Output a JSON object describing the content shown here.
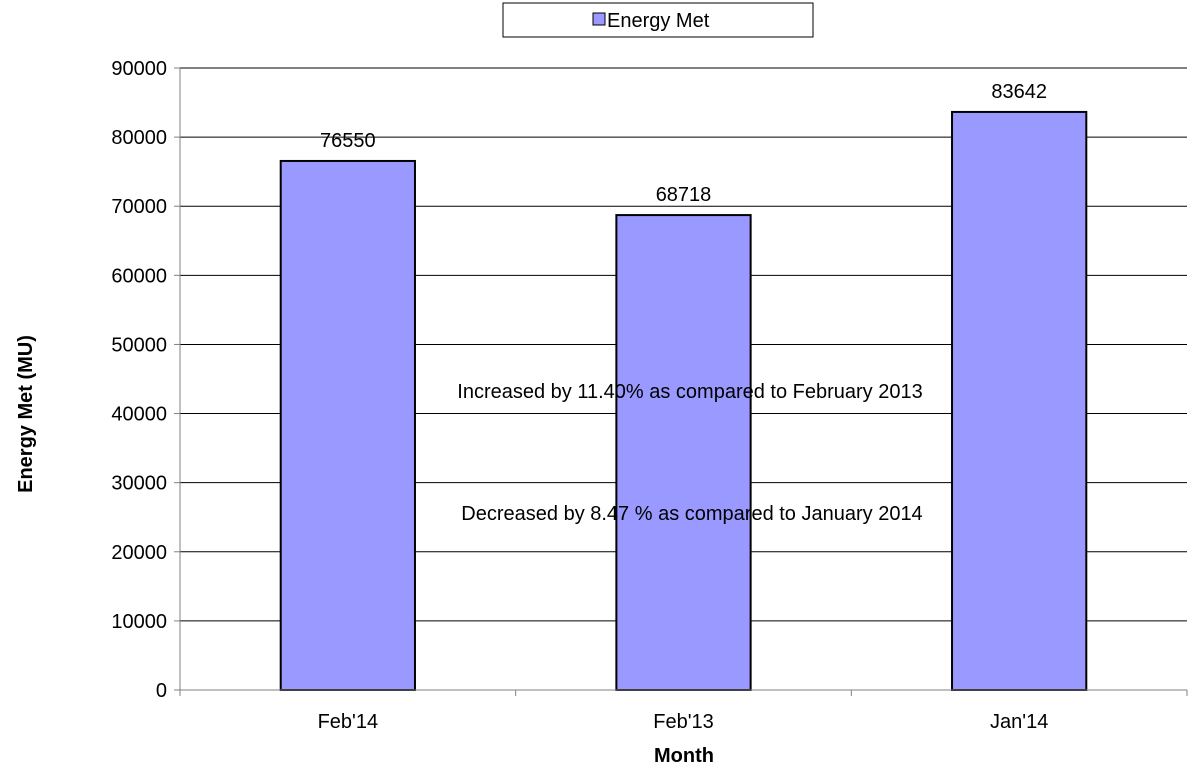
{
  "chart_data": {
    "type": "bar",
    "categories": [
      "Feb'14",
      "Feb'13",
      "Jan'14"
    ],
    "series": [
      {
        "name": "Energy Met",
        "values": [
          76550,
          68718,
          83642
        ]
      }
    ],
    "data_labels": [
      "76550",
      "68718",
      "83642"
    ],
    "xlabel": "Month",
    "ylabel": "Energy Met (MU)",
    "ylim": [
      0,
      90000
    ],
    "yticks": [
      0,
      10000,
      20000,
      30000,
      40000,
      50000,
      60000,
      70000,
      80000,
      90000
    ],
    "ytick_labels": [
      "0",
      "10000",
      "20000",
      "30000",
      "40000",
      "50000",
      "60000",
      "70000",
      "80000",
      "90000"
    ],
    "grid": "horizontal",
    "legend": {
      "position": "top-center",
      "entries": [
        "Energy Met"
      ]
    },
    "annotations": [
      "Increased by 11.40% as compared to February 2013",
      "Decreased by  8.47 % as compared to January 2014"
    ],
    "colors": {
      "bar_fill": "#9999ff",
      "bar_stroke": "#000000",
      "grid": "#000000",
      "axis": "#808080"
    }
  }
}
